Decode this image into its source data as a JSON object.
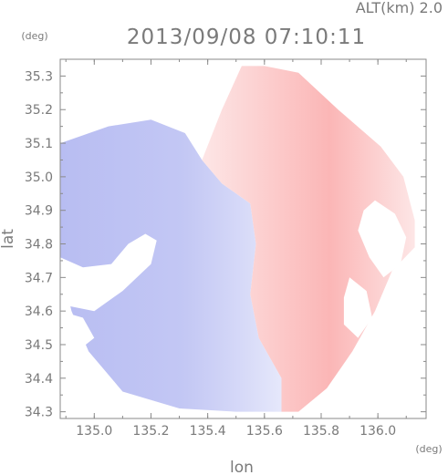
{
  "chart_data": {
    "type": "heatmap",
    "title": "2013/09/08 07:10:11",
    "subtitle": "ALT(km) 2.0",
    "xlabel": "lon",
    "ylabel": "lat",
    "x_unit": "(deg)",
    "y_unit": "(deg)",
    "xlim": [
      134.88,
      136.17
    ],
    "ylim": [
      34.28,
      35.35
    ],
    "x_ticks": [
      135.0,
      135.2,
      135.4,
      135.6,
      135.8,
      136.0
    ],
    "x_tick_labels": [
      "135.0",
      "135.2",
      "135.4",
      "135.6",
      "135.8",
      "136.0"
    ],
    "y_ticks": [
      34.3,
      34.4,
      34.5,
      34.6,
      34.7,
      34.8,
      34.9,
      35.0,
      35.1,
      35.2,
      35.3
    ],
    "y_tick_labels": [
      "34.3",
      "34.4",
      "34.5",
      "34.6",
      "34.7",
      "34.8",
      "34.9",
      "35.0",
      "35.1",
      "35.2",
      "35.3"
    ],
    "grid": false,
    "legend": false,
    "colors": {
      "negative": "#b8bdf2",
      "negative_light": "#e6e8fb",
      "positive": "#fbb6b6",
      "positive_light": "#fde6e6",
      "frame": "#8a8a8a",
      "text": "#7a7a7a"
    },
    "regions": [
      {
        "name": "approaching-lobe",
        "sign": "negative",
        "polygon": [
          [
            134.88,
            35.1
          ],
          [
            135.05,
            35.15
          ],
          [
            135.2,
            35.17
          ],
          [
            135.32,
            35.13
          ],
          [
            135.38,
            35.05
          ],
          [
            135.45,
            34.98
          ],
          [
            135.55,
            34.92
          ],
          [
            135.57,
            34.8
          ],
          [
            135.55,
            34.65
          ],
          [
            135.58,
            34.52
          ],
          [
            135.66,
            34.4
          ],
          [
            135.66,
            34.3
          ],
          [
            135.5,
            34.3
          ],
          [
            135.3,
            34.31
          ],
          [
            135.1,
            34.36
          ],
          [
            134.98,
            34.48
          ],
          [
            134.92,
            34.6
          ],
          [
            134.88,
            34.74
          ]
        ]
      },
      {
        "name": "receding-lobe",
        "sign": "positive",
        "polygon": [
          [
            135.38,
            35.05
          ],
          [
            135.45,
            35.2
          ],
          [
            135.52,
            35.33
          ],
          [
            135.6,
            35.33
          ],
          [
            135.72,
            35.31
          ],
          [
            135.86,
            35.2
          ],
          [
            136.01,
            35.09
          ],
          [
            136.09,
            35.0
          ],
          [
            136.13,
            34.87
          ],
          [
            136.13,
            34.79
          ],
          [
            136.05,
            34.72
          ],
          [
            135.99,
            34.6
          ],
          [
            135.91,
            34.48
          ],
          [
            135.82,
            34.37
          ],
          [
            135.72,
            34.3
          ],
          [
            135.66,
            34.3
          ],
          [
            135.66,
            34.4
          ],
          [
            135.58,
            34.52
          ],
          [
            135.55,
            34.65
          ],
          [
            135.57,
            34.8
          ],
          [
            135.55,
            34.92
          ],
          [
            135.45,
            34.98
          ]
        ]
      }
    ],
    "gaps": [
      {
        "polygon": [
          [
            134.88,
            34.76
          ],
          [
            134.96,
            34.73
          ],
          [
            135.06,
            34.74
          ],
          [
            135.12,
            34.8
          ],
          [
            135.18,
            34.83
          ],
          [
            135.22,
            34.81
          ],
          [
            135.2,
            34.74
          ],
          [
            135.1,
            34.66
          ],
          [
            135.0,
            34.6
          ],
          [
            134.88,
            34.62
          ]
        ]
      },
      {
        "polygon": [
          [
            134.88,
            34.6
          ],
          [
            134.96,
            34.58
          ],
          [
            135.0,
            34.52
          ],
          [
            134.94,
            34.48
          ],
          [
            134.88,
            34.5
          ]
        ]
      },
      {
        "polygon": [
          [
            135.99,
            34.93
          ],
          [
            136.06,
            34.89
          ],
          [
            136.1,
            34.82
          ],
          [
            136.08,
            34.74
          ],
          [
            136.02,
            34.7
          ],
          [
            135.97,
            34.76
          ],
          [
            135.93,
            34.84
          ],
          [
            135.95,
            34.9
          ]
        ]
      },
      {
        "polygon": [
          [
            135.9,
            34.7
          ],
          [
            135.96,
            34.66
          ],
          [
            135.98,
            34.58
          ],
          [
            135.93,
            34.52
          ],
          [
            135.88,
            34.56
          ],
          [
            135.88,
            34.64
          ]
        ]
      }
    ]
  }
}
